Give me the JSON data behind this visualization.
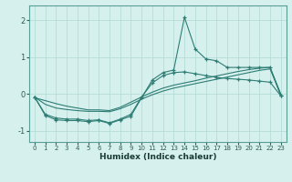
{
  "xlabel": "Humidex (Indice chaleur)",
  "bg_color": "#d6f0ee",
  "line_color": "#2d7d74",
  "grid_color": "#b0d8d4",
  "x_values": [
    0,
    1,
    2,
    3,
    4,
    5,
    6,
    7,
    8,
    9,
    10,
    11,
    12,
    13,
    14,
    15,
    16,
    17,
    18,
    19,
    20,
    21,
    22,
    23
  ],
  "line1_marked": [
    -0.08,
    -0.58,
    -0.7,
    -0.72,
    -0.72,
    -0.75,
    -0.72,
    -0.8,
    -0.7,
    -0.6,
    -0.1,
    0.38,
    0.58,
    0.65,
    2.08,
    1.22,
    0.95,
    0.9,
    0.72,
    0.72,
    0.72,
    0.72,
    0.72,
    -0.05
  ],
  "line2_marked": [
    -0.08,
    -0.55,
    -0.65,
    -0.68,
    -0.68,
    -0.72,
    -0.7,
    -0.78,
    -0.68,
    -0.55,
    -0.08,
    0.3,
    0.5,
    0.58,
    0.6,
    0.55,
    0.5,
    0.45,
    0.42,
    0.4,
    0.38,
    0.35,
    0.32,
    -0.05
  ],
  "line3_plain": [
    -0.08,
    -0.28,
    -0.38,
    -0.42,
    -0.45,
    -0.47,
    -0.47,
    -0.48,
    -0.4,
    -0.28,
    -0.14,
    -0.02,
    0.08,
    0.16,
    0.22,
    0.28,
    0.34,
    0.4,
    0.46,
    0.52,
    0.58,
    0.64,
    0.68,
    -0.02
  ],
  "line4_plain": [
    -0.1,
    -0.18,
    -0.26,
    -0.33,
    -0.38,
    -0.43,
    -0.43,
    -0.45,
    -0.36,
    -0.22,
    -0.08,
    0.05,
    0.16,
    0.24,
    0.3,
    0.36,
    0.43,
    0.49,
    0.55,
    0.61,
    0.66,
    0.7,
    0.72,
    0.0
  ],
  "ylim": [
    -1.3,
    2.4
  ],
  "xlim": [
    -0.5,
    23.5
  ],
  "yticks": [
    -1,
    0,
    1,
    2
  ],
  "xticks": [
    0,
    1,
    2,
    3,
    4,
    5,
    6,
    7,
    8,
    9,
    10,
    11,
    12,
    13,
    14,
    15,
    16,
    17,
    18,
    19,
    20,
    21,
    22,
    23
  ]
}
